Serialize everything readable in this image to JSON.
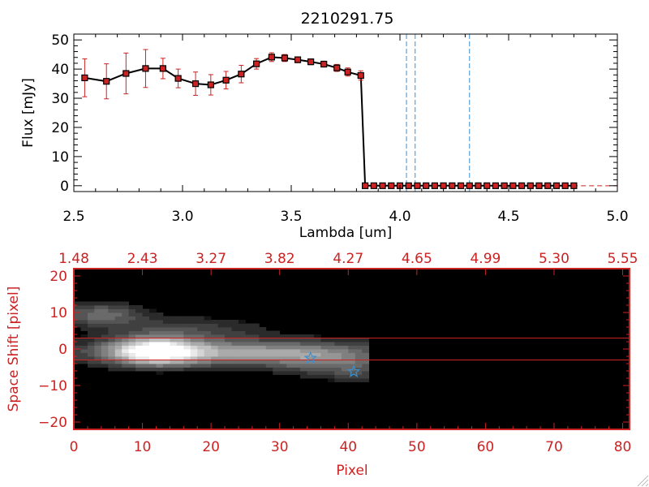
{
  "chart_data": [
    {
      "type": "line",
      "title": "2210291.75",
      "xlabel": "Lambda [um]",
      "ylabel": "Flux [mJy]",
      "xlim": [
        2.5,
        5.0
      ],
      "ylim": [
        -2,
        52
      ],
      "x_ticks": [
        2.5,
        3.0,
        3.5,
        4.0,
        4.5,
        5.0
      ],
      "x_tick_labels": [
        "2.5",
        "3.0",
        "3.5",
        "4.0",
        "4.5",
        "5.0"
      ],
      "y_ticks": [
        0,
        10,
        20,
        30,
        40,
        50
      ],
      "y_tick_labels": [
        "0",
        "10",
        "20",
        "30",
        "40",
        "50"
      ],
      "colors": {
        "line": "#000000",
        "marker": "#cc2222",
        "errorbar": "#cc2222",
        "vline": "#3a8fd0"
      },
      "vlines": [
        4.03,
        4.07,
        4.32
      ],
      "series": [
        {
          "name": "flux",
          "x": [
            2.55,
            2.65,
            2.74,
            2.83,
            2.91,
            2.98,
            3.06,
            3.13,
            3.2,
            3.27,
            3.34,
            3.41,
            3.47,
            3.53,
            3.59,
            3.65,
            3.71,
            3.76,
            3.82,
            3.84,
            3.88,
            3.92,
            3.96,
            4.0,
            4.04,
            4.08,
            4.12,
            4.16,
            4.2,
            4.24,
            4.28,
            4.32,
            4.36,
            4.4,
            4.44,
            4.48,
            4.52,
            4.56,
            4.6,
            4.64,
            4.68,
            4.72,
            4.76,
            4.8
          ],
          "y": [
            37.0,
            35.8,
            38.5,
            40.2,
            40.2,
            36.8,
            35.0,
            34.6,
            36.2,
            38.3,
            41.8,
            44.1,
            43.8,
            43.2,
            42.5,
            41.7,
            40.4,
            39.0,
            37.8,
            0,
            0,
            0,
            0,
            0,
            0,
            0,
            0,
            0,
            0,
            0,
            0,
            0,
            0,
            0,
            0,
            0,
            0,
            0,
            0,
            0,
            0,
            0,
            0,
            0
          ],
          "yerr": [
            6.5,
            6.0,
            7.0,
            6.5,
            3.5,
            3.2,
            4.0,
            3.5,
            3.0,
            3.0,
            1.8,
            1.5,
            1.2,
            1.0,
            1.0,
            1.0,
            1.2,
            1.4,
            1.6,
            0,
            0,
            0,
            0,
            0,
            0,
            0,
            0,
            0,
            0,
            0,
            0,
            0,
            0,
            0,
            0,
            0,
            0,
            0,
            0,
            0,
            0,
            0,
            0,
            0
          ]
        }
      ]
    },
    {
      "type": "heatmap",
      "xlabel": "Pixel",
      "ylabel": "Space Shift [pixel]",
      "xlim": [
        0,
        81
      ],
      "ylim": [
        -22,
        22
      ],
      "x_ticks": [
        0,
        10,
        20,
        30,
        40,
        50,
        60,
        70,
        80
      ],
      "x_tick_labels": [
        "0",
        "10",
        "20",
        "30",
        "40",
        "50",
        "60",
        "70",
        "80"
      ],
      "y_ticks": [
        -20,
        -10,
        0,
        10,
        20
      ],
      "y_tick_labels": [
        "−20",
        "−10",
        "0",
        "10",
        "20"
      ],
      "top_ticks": [
        0,
        10,
        20,
        30,
        40,
        50,
        60,
        70,
        80
      ],
      "top_tick_labels": [
        "1.48",
        "2.43",
        "3.27",
        "3.82",
        "4.27",
        "4.65",
        "4.99",
        "5.30",
        "5.55"
      ],
      "hlines": [
        3,
        -3
      ],
      "colors": {
        "axis": "#cc2222",
        "hline": "#cc2222",
        "star": "#3a8fd0",
        "background": "#000000"
      },
      "trace_extent_px": [
        0,
        43
      ],
      "blobs": [
        {
          "cx": 12,
          "cy": -0.5,
          "sx": 4.2,
          "sy": 2.4,
          "amp": 1.0
        },
        {
          "cx": 24,
          "cy": -1.0,
          "sx": 14,
          "sy": 2.2,
          "amp": 0.55
        },
        {
          "cx": 4,
          "cy": 9.5,
          "sx": 4,
          "sy": 2.0,
          "amp": 0.32
        },
        {
          "cx": 16,
          "cy": 5,
          "sx": 8,
          "sy": 2.5,
          "amp": 0.18
        },
        {
          "cx": 35,
          "cy": -3.5,
          "sx": 4,
          "sy": 2.5,
          "amp": 0.22
        },
        {
          "cx": 41,
          "cy": -5.5,
          "sx": 2.5,
          "sy": 2.5,
          "amp": 0.2
        }
      ],
      "stars": [
        {
          "x": 34.5,
          "y": -2.5
        },
        {
          "x": 40.8,
          "y": -6.2
        }
      ]
    }
  ]
}
